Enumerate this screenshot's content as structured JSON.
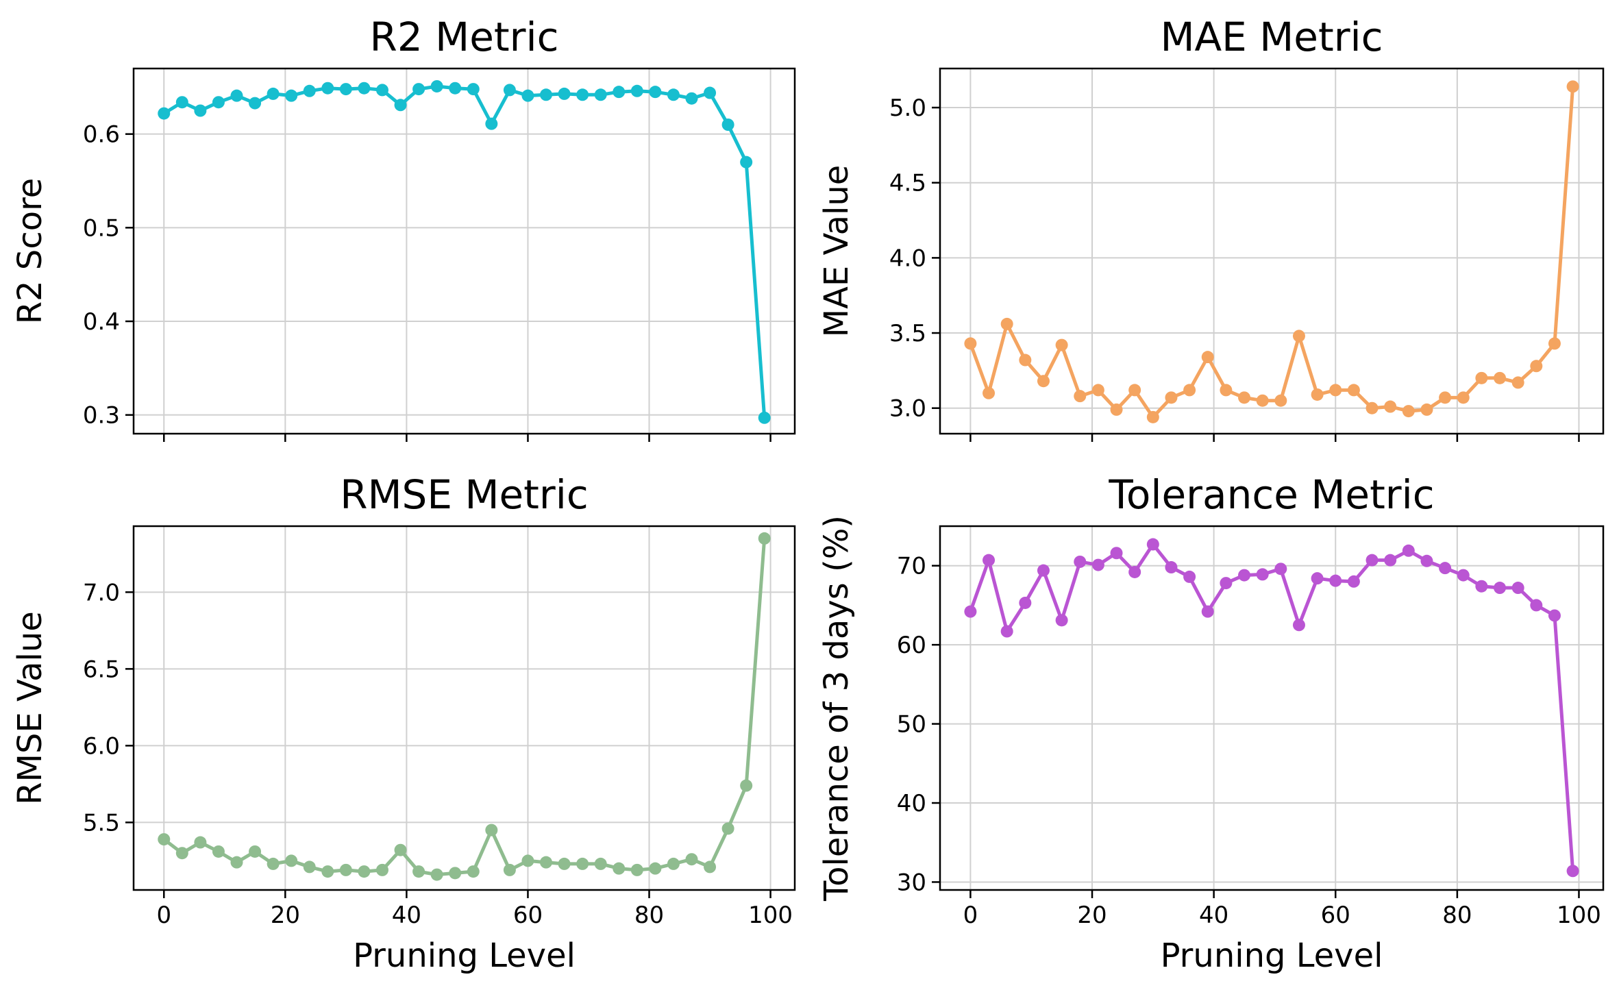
{
  "chart_data": [
    {
      "type": "line",
      "title": "R2 Metric",
      "xlabel": "",
      "ylabel": "R2 Score",
      "xlim": [
        -5,
        104
      ],
      "ylim": [
        0.28,
        0.67
      ],
      "xticks": [
        0,
        20,
        40,
        60,
        80,
        100
      ],
      "xtick_labels_visible": false,
      "yticks": [
        0.3,
        0.4,
        0.5,
        0.6
      ],
      "ytick_labels": [
        "0.3",
        "0.4",
        "0.5",
        "0.6"
      ],
      "grid": true,
      "color": "#17becf",
      "x": [
        0,
        3,
        6,
        9,
        12,
        15,
        18,
        21,
        24,
        27,
        30,
        33,
        36,
        39,
        42,
        45,
        48,
        51,
        54,
        57,
        60,
        63,
        66,
        69,
        72,
        75,
        78,
        81,
        84,
        87,
        90,
        93,
        96,
        99
      ],
      "y": [
        0.622,
        0.634,
        0.625,
        0.634,
        0.641,
        0.633,
        0.643,
        0.641,
        0.646,
        0.649,
        0.648,
        0.649,
        0.647,
        0.631,
        0.648,
        0.651,
        0.649,
        0.648,
        0.611,
        0.647,
        0.641,
        0.642,
        0.643,
        0.642,
        0.642,
        0.645,
        0.646,
        0.645,
        0.642,
        0.638,
        0.644,
        0.61,
        0.57,
        0.297
      ]
    },
    {
      "type": "line",
      "title": "MAE Metric",
      "xlabel": "",
      "ylabel": "MAE Value",
      "xlim": [
        -5,
        104
      ],
      "ylim": [
        2.83,
        5.26
      ],
      "xticks": [
        0,
        20,
        40,
        60,
        80,
        100
      ],
      "xtick_labels_visible": false,
      "yticks": [
        3.0,
        3.5,
        4.0,
        4.5,
        5.0
      ],
      "ytick_labels": [
        "3.0",
        "3.5",
        "4.0",
        "4.5",
        "5.0"
      ],
      "grid": true,
      "color": "#f4a460",
      "x": [
        0,
        3,
        6,
        9,
        12,
        15,
        18,
        21,
        24,
        27,
        30,
        33,
        36,
        39,
        42,
        45,
        48,
        51,
        54,
        57,
        60,
        63,
        66,
        69,
        72,
        75,
        78,
        81,
        84,
        87,
        90,
        93,
        96,
        99
      ],
      "y": [
        3.43,
        3.1,
        3.56,
        3.32,
        3.18,
        3.42,
        3.08,
        3.12,
        2.99,
        3.12,
        2.94,
        3.07,
        3.12,
        3.34,
        3.12,
        3.07,
        3.05,
        3.05,
        3.48,
        3.09,
        3.12,
        3.12,
        3.0,
        3.01,
        2.98,
        2.99,
        3.07,
        3.07,
        3.2,
        3.2,
        3.17,
        3.28,
        3.43,
        5.14
      ]
    },
    {
      "type": "line",
      "title": "RMSE Metric",
      "xlabel": "Pruning Level",
      "ylabel": "RMSE Value",
      "xlim": [
        -5,
        104
      ],
      "ylim": [
        5.06,
        7.43
      ],
      "xticks": [
        0,
        20,
        40,
        60,
        80,
        100
      ],
      "xtick_labels": [
        "0",
        "20",
        "40",
        "60",
        "80",
        "100"
      ],
      "yticks": [
        5.5,
        6.0,
        6.5,
        7.0
      ],
      "ytick_labels": [
        "5.5",
        "6.0",
        "6.5",
        "7.0"
      ],
      "grid": true,
      "color": "#8fbc8f",
      "x": [
        0,
        3,
        6,
        9,
        12,
        15,
        18,
        21,
        24,
        27,
        30,
        33,
        36,
        39,
        42,
        45,
        48,
        51,
        54,
        57,
        60,
        63,
        66,
        69,
        72,
        75,
        78,
        81,
        84,
        87,
        90,
        93,
        96,
        99
      ],
      "y": [
        5.39,
        5.3,
        5.37,
        5.31,
        5.24,
        5.31,
        5.23,
        5.25,
        5.21,
        5.18,
        5.19,
        5.18,
        5.19,
        5.32,
        5.18,
        5.16,
        5.17,
        5.18,
        5.45,
        5.19,
        5.25,
        5.24,
        5.23,
        5.23,
        5.23,
        5.2,
        5.19,
        5.2,
        5.23,
        5.26,
        5.21,
        5.46,
        5.74,
        7.35
      ]
    },
    {
      "type": "line",
      "title": "Tolerance Metric",
      "xlabel": "Pruning Level",
      "ylabel": "Tolerance of 3 days (%)",
      "xlim": [
        -5,
        104
      ],
      "ylim": [
        29.0,
        75.0
      ],
      "xticks": [
        0,
        20,
        40,
        60,
        80,
        100
      ],
      "xtick_labels": [
        "0",
        "20",
        "40",
        "60",
        "80",
        "100"
      ],
      "yticks": [
        30,
        40,
        50,
        60,
        70
      ],
      "ytick_labels": [
        "30",
        "40",
        "50",
        "60",
        "70"
      ],
      "grid": true,
      "color": "#ba55d3",
      "x": [
        0,
        3,
        6,
        9,
        12,
        15,
        18,
        21,
        24,
        27,
        30,
        33,
        36,
        39,
        42,
        45,
        48,
        51,
        54,
        57,
        60,
        63,
        66,
        69,
        72,
        75,
        78,
        81,
        84,
        87,
        90,
        93,
        96,
        99
      ],
      "y": [
        64.2,
        70.7,
        61.7,
        65.3,
        69.4,
        63.1,
        70.5,
        70.1,
        71.6,
        69.2,
        72.7,
        69.8,
        68.6,
        64.2,
        67.8,
        68.8,
        68.9,
        69.6,
        62.5,
        68.4,
        68.1,
        68.0,
        70.7,
        70.7,
        71.9,
        70.6,
        69.7,
        68.8,
        67.4,
        67.2,
        67.2,
        65.0,
        63.7,
        31.4
      ]
    }
  ]
}
